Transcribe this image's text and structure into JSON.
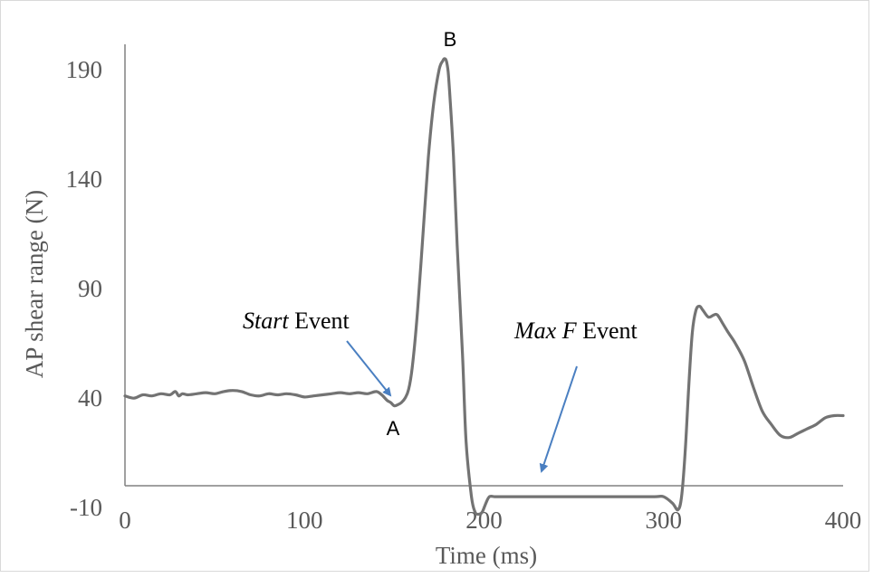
{
  "chart_data": {
    "type": "line",
    "title": "",
    "xlabel": "Time (ms)",
    "ylabel": "AP shear range (N)",
    "xlim": [
      0,
      400
    ],
    "ylim": [
      -10,
      200
    ],
    "x_ticks": [
      "0",
      "100",
      "200",
      "300",
      "400"
    ],
    "y_ticks": [
      "-10",
      "40",
      "90",
      "140",
      "190"
    ],
    "grid": false,
    "legend": "none",
    "line_color": "#737373",
    "arrow_color": "#4a7fc1",
    "series": [
      {
        "x": [
          0,
          5,
          10,
          15,
          20,
          25,
          28,
          30,
          32,
          35,
          40,
          45,
          50,
          55,
          60,
          65,
          70,
          75,
          80,
          85,
          90,
          95,
          100,
          105,
          110,
          115,
          120,
          125,
          130,
          135,
          140,
          143,
          146,
          148,
          150,
          152,
          154,
          156,
          158,
          160,
          163,
          166,
          169,
          172,
          175,
          177,
          178,
          179,
          180,
          181,
          183,
          185,
          188,
          190,
          193,
          195,
          197,
          199,
          201,
          203,
          206,
          210,
          220,
          240,
          260,
          280,
          295,
          300,
          305,
          308,
          310,
          312,
          314,
          316,
          318,
          320,
          322,
          325,
          328,
          330,
          333,
          336,
          340,
          345,
          350,
          355,
          360,
          365,
          370,
          375,
          380,
          385,
          390,
          395,
          400
        ],
        "y": [
          41,
          40,
          41.5,
          41,
          42,
          41.5,
          43,
          41,
          42,
          41.5,
          42,
          42.5,
          42,
          43,
          43.5,
          43,
          41.5,
          41,
          42,
          41.5,
          42,
          41.5,
          40.5,
          41,
          41.5,
          42,
          42.5,
          42,
          42.5,
          42,
          43,
          41.5,
          39,
          38,
          36.5,
          37,
          38,
          40,
          44,
          54,
          80,
          115,
          150,
          175,
          190,
          194,
          195,
          194,
          189,
          178,
          150,
          110,
          60,
          20,
          -5,
          -12,
          -13,
          -12,
          -8,
          -5,
          -5,
          -5,
          -5,
          -5,
          -5,
          -5,
          -5,
          -5,
          -8,
          -11,
          -5,
          15,
          45,
          70,
          80,
          82,
          80,
          77,
          78,
          78,
          74,
          70,
          65,
          57,
          45,
          34,
          28,
          23,
          22,
          24,
          26,
          28,
          31,
          32,
          32
        ]
      }
    ],
    "annotations": {
      "start_prefix": "Start",
      "start_suffix": " Event",
      "maxf_prefix": "Max F",
      "maxf_suffix": " Event",
      "point_a": "A",
      "point_b": "B"
    }
  }
}
